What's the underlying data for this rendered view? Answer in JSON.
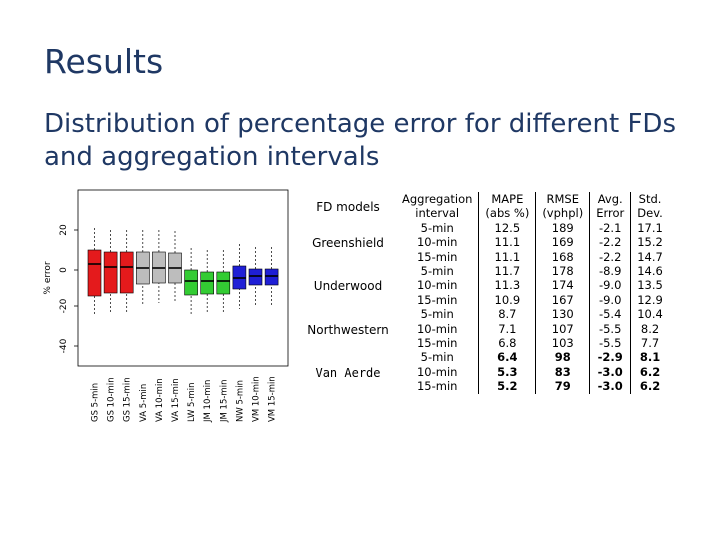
{
  "slide": {
    "title": "Results",
    "subtitle": "Distribution of percentage error for different FDs and aggregation intervals"
  },
  "plot": {
    "ylabel": "% error",
    "yticks": [
      "20",
      "0",
      "-20",
      "-40"
    ],
    "xlabels": [
      "GS 5-min",
      "GS 10-min",
      "GS 15-min",
      "VA 5-min",
      "VA 10-min",
      "VA 15-min",
      "LW 5-min",
      "JM 10-min",
      "JM 15-min",
      "NW 5-min",
      "VM 10-min",
      "VM 15-min"
    ],
    "colors": [
      "#e41a1c",
      "#e41a1c",
      "#e41a1c",
      "#bdbdbd",
      "#bdbdbd",
      "#bdbdbd",
      "#33cc33",
      "#33cc33",
      "#33cc33",
      "#1f1fd6",
      "#1f1fd6",
      "#1f1fd6"
    ]
  },
  "fd_models": [
    "FD models",
    "Greenshield",
    "Underwood",
    "Northwestern",
    "Van Aerde"
  ],
  "table": {
    "headers": [
      [
        "Aggregation",
        "interval"
      ],
      [
        "MAPE",
        "(abs %)"
      ],
      [
        "RMSE",
        "(vphpl)"
      ],
      [
        "Avg.",
        "Error"
      ],
      [
        "Std.",
        "Dev."
      ]
    ],
    "rows": [
      [
        "5-min",
        "12.5",
        "189",
        "-2.1",
        "17.1"
      ],
      [
        "10-min",
        "11.1",
        "169",
        "-2.2",
        "15.2"
      ],
      [
        "15-min",
        "11.1",
        "168",
        "-2.2",
        "14.7"
      ],
      [
        "5-min",
        "11.7",
        "178",
        "-8.9",
        "14.6"
      ],
      [
        "10-min",
        "11.3",
        "174",
        "-9.0",
        "13.5"
      ],
      [
        "15-min",
        "10.9",
        "167",
        "-9.0",
        "12.9"
      ],
      [
        "5-min",
        "8.7",
        "130",
        "-5.4",
        "10.4"
      ],
      [
        "10-min",
        "7.1",
        "107",
        "-5.5",
        "8.2"
      ],
      [
        "15-min",
        "6.8",
        "103",
        "-5.5",
        "7.7"
      ],
      [
        "5-min",
        "6.4",
        "98",
        "-2.9",
        "8.1"
      ],
      [
        "10-min",
        "5.3",
        "83",
        "-3.0",
        "6.2"
      ],
      [
        "15-min",
        "5.2",
        "79",
        "-3.0",
        "6.2"
      ]
    ]
  }
}
